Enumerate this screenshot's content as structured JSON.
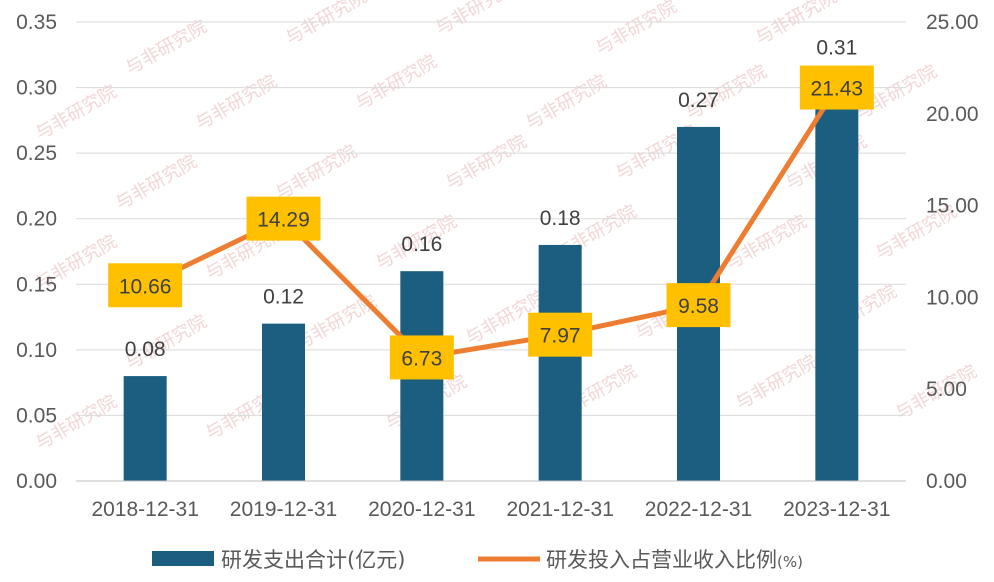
{
  "chart_data": {
    "type": "bar+line",
    "categories": [
      "2018-12-31",
      "2019-12-31",
      "2020-12-31",
      "2021-12-31",
      "2022-12-31",
      "2023-12-31"
    ],
    "series": [
      {
        "name": "研发支出合计(亿元)",
        "type": "bar",
        "axis": "left",
        "values": [
          0.08,
          0.12,
          0.16,
          0.18,
          0.27,
          0.31
        ],
        "labels": [
          "0.08",
          "0.12",
          "0.16",
          "0.18",
          "0.27",
          "0.31"
        ],
        "color": "#1b5e80"
      },
      {
        "name": "研发投入占营业收入比例",
        "name_suffix": "(%)",
        "type": "line",
        "axis": "right",
        "values": [
          10.66,
          14.29,
          6.73,
          7.97,
          9.58,
          21.43
        ],
        "labels": [
          "10.66",
          "14.29",
          "6.73",
          "7.97",
          "9.58",
          "21.43"
        ],
        "color": "#ed7d31",
        "label_bg": "#ffc000"
      }
    ],
    "y_left": {
      "min": 0,
      "max": 0.35,
      "ticks": [
        "0.00",
        "0.05",
        "0.10",
        "0.15",
        "0.20",
        "0.25",
        "0.30",
        "0.35"
      ]
    },
    "y_right": {
      "min": 0,
      "max": 25,
      "ticks": [
        "0.00",
        "5.00",
        "10.00",
        "15.00",
        "20.00",
        "25.00"
      ]
    },
    "grid": true,
    "legend": "bottom",
    "watermark": "与非研究院"
  }
}
